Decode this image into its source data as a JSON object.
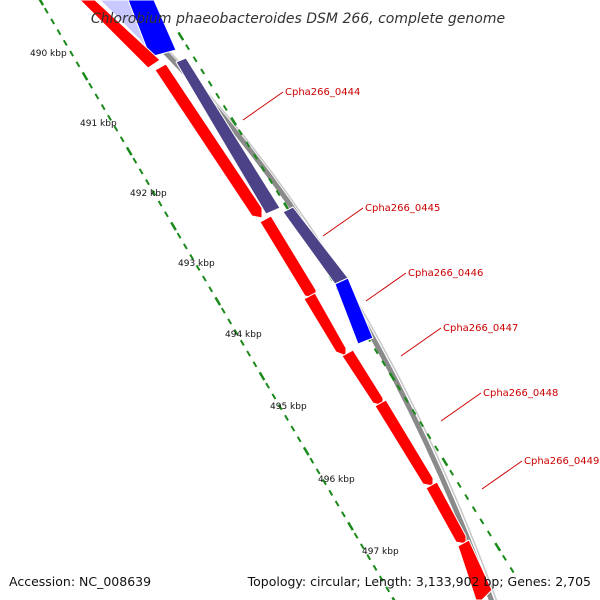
{
  "title": "Chlorobium phaeobacteroides DSM 266, complete genome",
  "accession_text": "Accession: NC_008639",
  "topology_text": "Topology: circular; Length: 3,133,902 bp; Genes: 2,705",
  "ticks": [
    "490 kbp",
    "491 kbp",
    "492 kbp",
    "493 kbp",
    "494 kbp",
    "495 kbp",
    "496 kbp",
    "497 kbp"
  ],
  "gene_labels": [
    "Cpha266_0444",
    "Cpha266_0445",
    "Cpha266_0446",
    "Cpha266_0447",
    "Cpha266_0448",
    "Cpha266_0449"
  ],
  "colors": {
    "backbone": "#777777",
    "forward_gene": "#ff0000",
    "reverse_gene": "#0000ff",
    "overlap_gene": "#4b4287",
    "tick": "#1a8a1a",
    "label": "#cc0000"
  }
}
